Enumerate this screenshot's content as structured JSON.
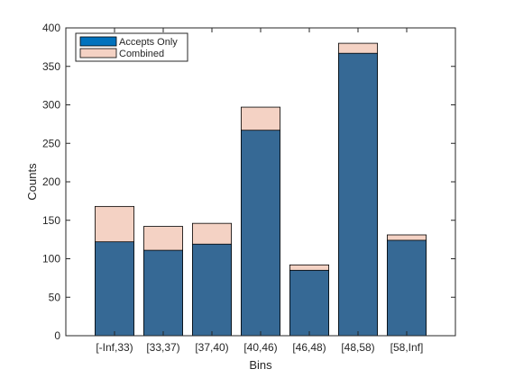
{
  "chart_data": {
    "type": "bar",
    "xlabel": "Bins",
    "ylabel": "Counts",
    "categories": [
      "[-Inf,33)",
      "[33,37)",
      "[37,40)",
      "[40,46)",
      "[46,48)",
      "[48,58)",
      "[58,Inf]"
    ],
    "ylim": [
      0,
      400
    ],
    "yticks": [
      0,
      50,
      100,
      150,
      200,
      250,
      300,
      350,
      400
    ],
    "series": [
      {
        "name": "Combined",
        "color": "#F4D2C4",
        "values": [
          168,
          142,
          146,
          297,
          92,
          380,
          131
        ]
      },
      {
        "name": "Accepts Only",
        "color": "#366995",
        "values": [
          122,
          111,
          119,
          267,
          85,
          367,
          124
        ]
      }
    ],
    "legend": {
      "location": "top-left",
      "entries": [
        {
          "label": "Accepts Only",
          "color": "#0072BD"
        },
        {
          "label": "Combined",
          "color": "#F4D2C4"
        }
      ]
    },
    "grid": false
  }
}
